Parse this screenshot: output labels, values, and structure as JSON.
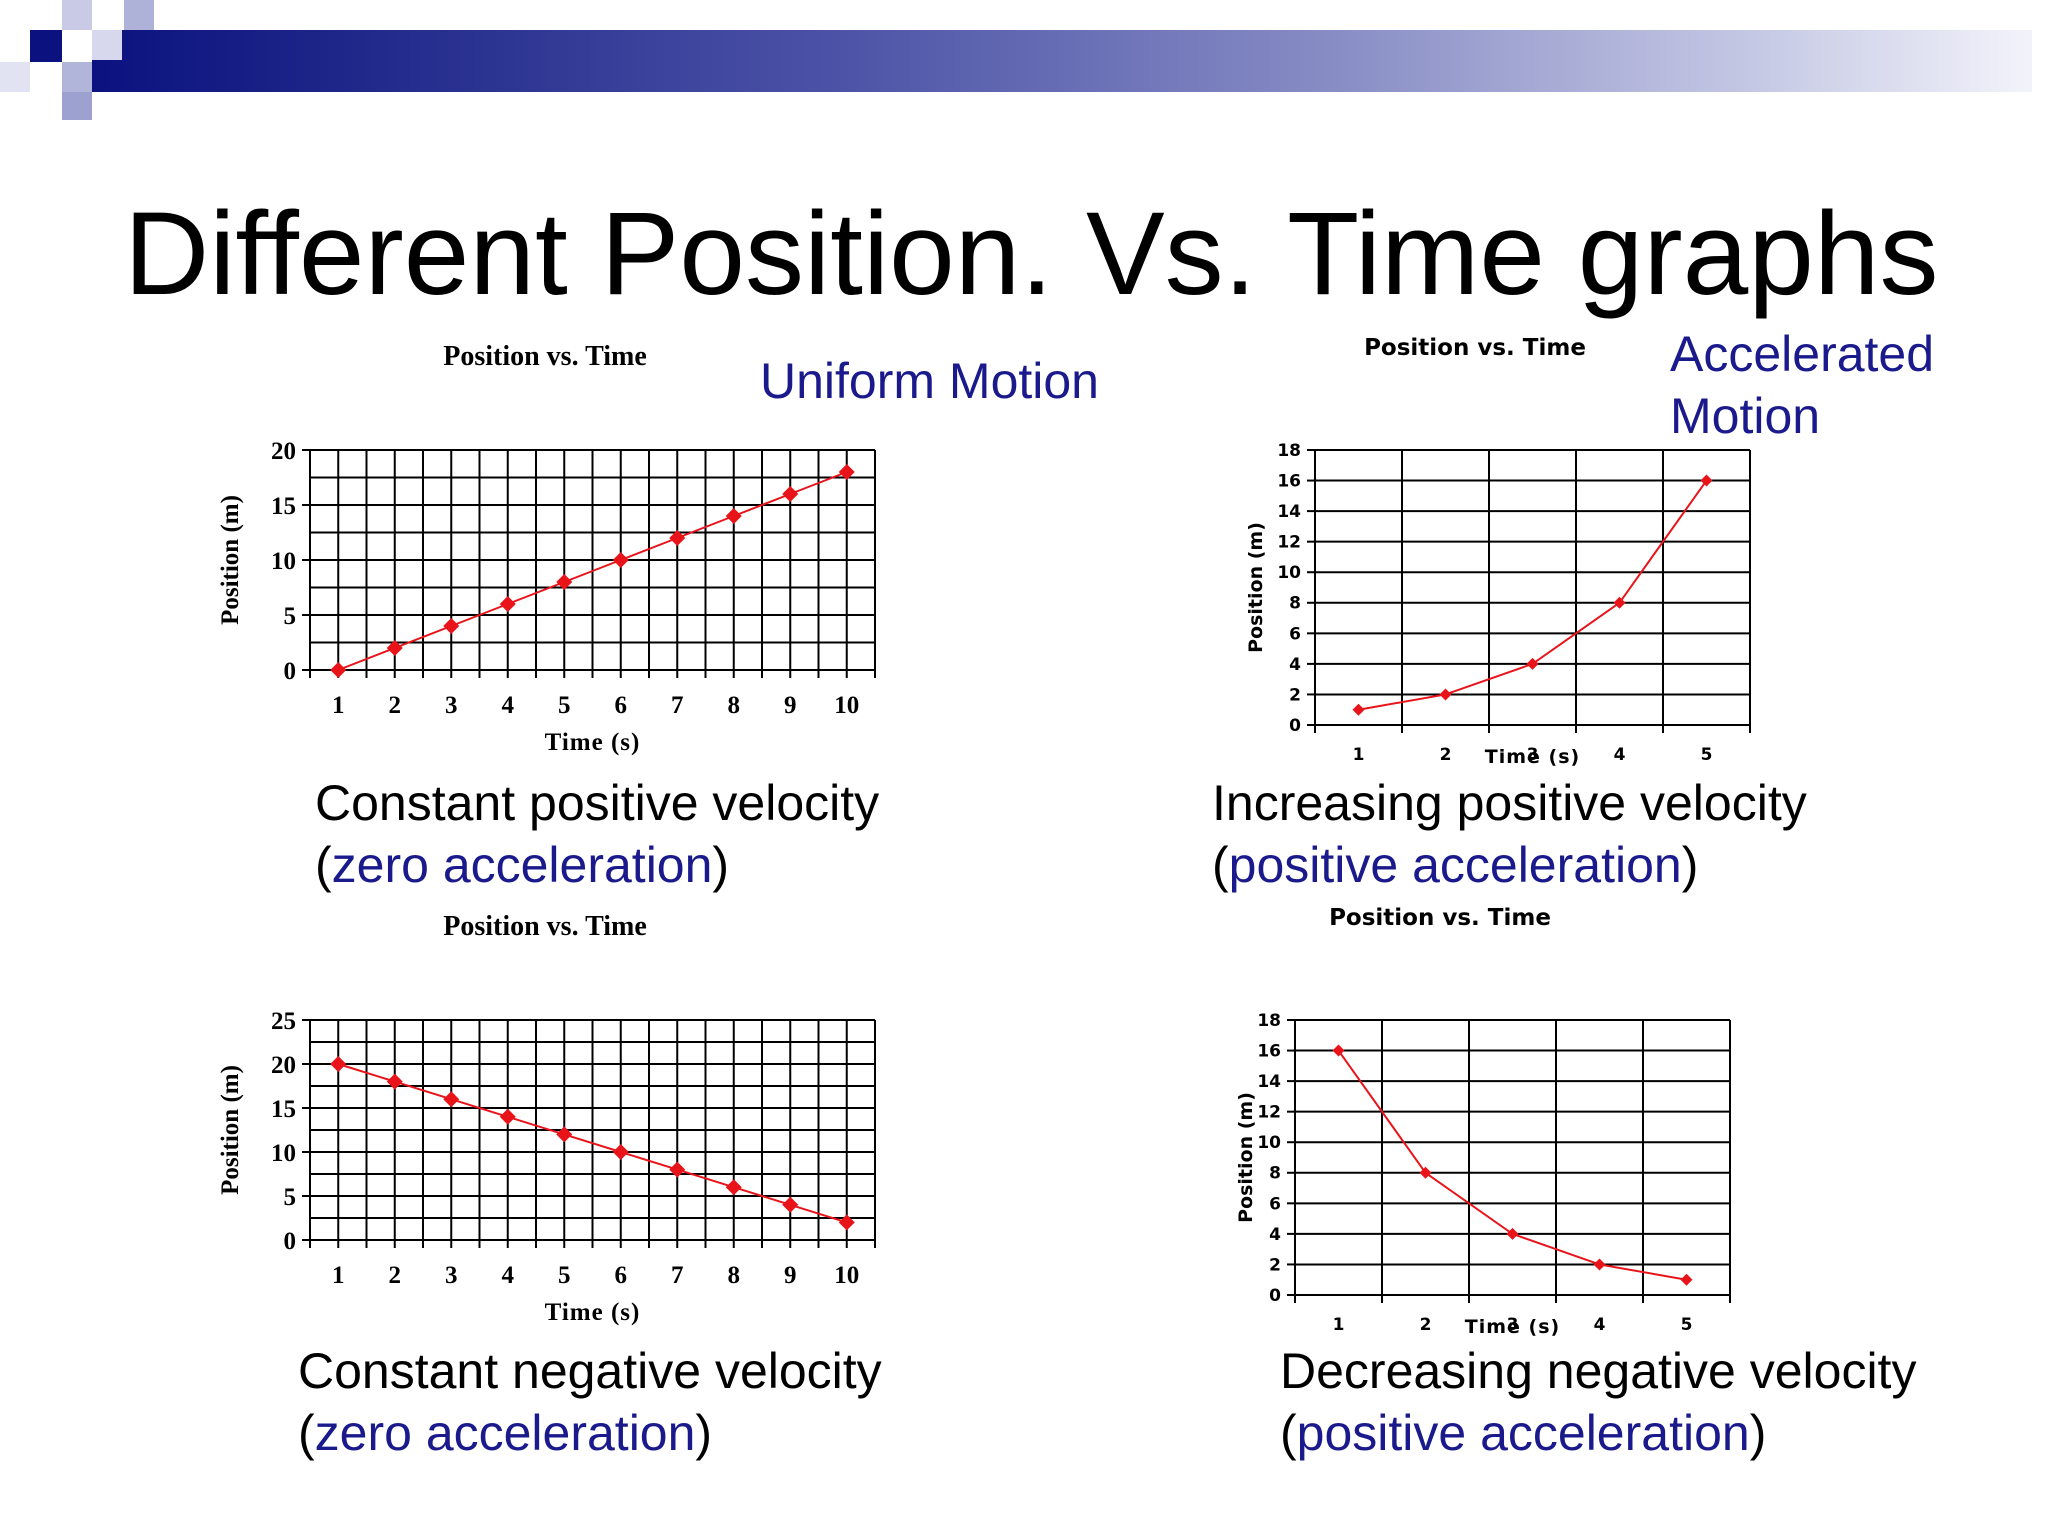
{
  "slide": {
    "title": "Different Position. Vs. Time graphs",
    "labels": {
      "uniform_motion": "Uniform Motion",
      "accelerated_motion_line1": "Accelerated",
      "accelerated_motion_line2": "Motion"
    },
    "captions": [
      {
        "line1": "Constant positive velocity",
        "paren_open": "(",
        "emphasis": "zero acceleration",
        "paren_close": ")"
      },
      {
        "line1": "Increasing positive velocity",
        "paren_open": "(",
        "emphasis": "positive acceleration",
        "paren_close": ")"
      },
      {
        "line1": "Constant negative velocity",
        "paren_open": "(",
        "emphasis": "zero acceleration",
        "paren_close": ")"
      },
      {
        "line1": "Decreasing negative velocity",
        "paren_open": "(",
        "emphasis": "positive acceleration",
        "paren_close": ")"
      }
    ],
    "colors": {
      "accent_blue": "#1a1a8c",
      "series_red": "#e8141a",
      "header_dark": "#0b1280"
    }
  },
  "chart_data": [
    {
      "id": "tl",
      "type": "line",
      "title": "Position vs. Time",
      "xlabel": "Time (s)",
      "ylabel": "Position (m)",
      "categories": [
        "1",
        "2",
        "3",
        "4",
        "5",
        "6",
        "7",
        "8",
        "9",
        "10"
      ],
      "series": [
        {
          "values": [
            0,
            2,
            4,
            6,
            8,
            10,
            12,
            14,
            16,
            18
          ]
        }
      ],
      "ylim": [
        0,
        20
      ],
      "yticks": [
        0,
        5,
        10,
        15,
        20
      ],
      "grid": true
    },
    {
      "id": "tr",
      "type": "line",
      "title": "Position vs. Time",
      "xlabel": "Time (s)",
      "ylabel": "Position (m)",
      "categories": [
        "1",
        "2",
        "3",
        "4",
        "5"
      ],
      "series": [
        {
          "values": [
            1,
            2,
            4,
            8,
            16
          ]
        }
      ],
      "ylim": [
        0,
        18
      ],
      "yticks": [
        0,
        2,
        4,
        6,
        8,
        10,
        12,
        14,
        16,
        18
      ],
      "grid": true
    },
    {
      "id": "bl",
      "type": "line",
      "title": "Position vs. Time",
      "xlabel": "Time (s)",
      "ylabel": "Position (m)",
      "categories": [
        "1",
        "2",
        "3",
        "4",
        "5",
        "6",
        "7",
        "8",
        "9",
        "10"
      ],
      "series": [
        {
          "values": [
            20,
            18,
            16,
            14,
            12,
            10,
            8,
            6,
            4,
            2
          ]
        }
      ],
      "ylim": [
        0,
        25
      ],
      "yticks": [
        0,
        5,
        10,
        15,
        20,
        25
      ],
      "grid": true
    },
    {
      "id": "br",
      "type": "line",
      "title": "Position vs. Time",
      "xlabel": "Time (s)",
      "ylabel": "Position (m)",
      "categories": [
        "1",
        "2",
        "3",
        "4",
        "5"
      ],
      "series": [
        {
          "values": [
            16,
            8,
            4,
            2,
            1
          ]
        }
      ],
      "ylim": [
        0,
        18
      ],
      "yticks": [
        0,
        2,
        4,
        6,
        8,
        10,
        12,
        14,
        16,
        18
      ],
      "grid": true
    }
  ]
}
